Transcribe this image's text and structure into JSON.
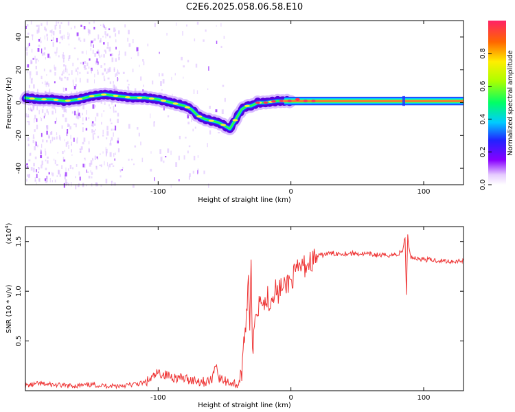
{
  "title": "C2E6.2025.058.06.58.E10",
  "spectrogram": {
    "xlabel": "Height of straight line (km)",
    "ylabel": "Frequency (Hz)",
    "xlim": [
      -200,
      130
    ],
    "ylim": [
      -50,
      50
    ],
    "xticks": [
      -100,
      0,
      100
    ],
    "yticks": [
      40,
      20,
      0,
      -20,
      -40
    ],
    "track": [
      [
        -200,
        3
      ],
      [
        -190,
        2
      ],
      [
        -180,
        2
      ],
      [
        -170,
        1
      ],
      [
        -160,
        2
      ],
      [
        -150,
        4
      ],
      [
        -140,
        5
      ],
      [
        -130,
        4
      ],
      [
        -120,
        3
      ],
      [
        -110,
        3
      ],
      [
        -100,
        2
      ],
      [
        -90,
        0
      ],
      [
        -80,
        -2
      ],
      [
        -75,
        -4
      ],
      [
        -70,
        -8
      ],
      [
        -65,
        -10
      ],
      [
        -60,
        -11
      ],
      [
        -55,
        -12
      ],
      [
        -50,
        -14
      ],
      [
        -46,
        -16
      ],
      [
        -43,
        -12
      ],
      [
        -40,
        -8
      ],
      [
        -37,
        -4
      ],
      [
        -33,
        -2
      ],
      [
        -30,
        -2
      ],
      [
        -25,
        0
      ],
      [
        -20,
        0
      ],
      [
        -10,
        1
      ],
      [
        0,
        1
      ],
      [
        5,
        2
      ],
      [
        10,
        1
      ],
      [
        20,
        1
      ],
      [
        30,
        1
      ],
      [
        50,
        1
      ],
      [
        80,
        1
      ],
      [
        100,
        1
      ],
      [
        130,
        1
      ]
    ]
  },
  "colorbar": {
    "label": "Normalized spectral amplitude",
    "ticks": [
      "0.0",
      "0.2",
      "0.4",
      "0.6",
      "0.8"
    ],
    "tick_values": [
      0.0,
      0.2,
      0.4,
      0.6,
      0.8
    ]
  },
  "chart_data": {
    "type": "line",
    "title": "C2E6.2025.058.06.58.E10",
    "xlabel": "Height of straight line (km)",
    "ylabel": "SNR (10 * v/v)",
    "y_multiplier": "(x10^4)",
    "y_multiplier_base": "(x10",
    "y_multiplier_exp": "4",
    "xlim": [
      -200,
      130
    ],
    "ylim": [
      0,
      1.65
    ],
    "xticks": [
      -100,
      0,
      100
    ],
    "yticks": [
      0.5,
      1.0,
      1.5
    ],
    "ytick_labels": [
      "0.5",
      "1.0",
      "1.5"
    ],
    "x": [
      -200,
      -190,
      -180,
      -170,
      -160,
      -150,
      -140,
      -130,
      -120,
      -110,
      -105,
      -100,
      -95,
      -90,
      -85,
      -80,
      -75,
      -70,
      -65,
      -60,
      -56,
      -55,
      -54,
      -50,
      -45,
      -40,
      -38,
      -36,
      -35,
      -34,
      -33,
      -32,
      -31,
      -30,
      -29,
      -28,
      -27,
      -26,
      -25,
      -24,
      -22,
      -20,
      -18,
      -16,
      -14,
      -12,
      -10,
      -8,
      -6,
      -4,
      -2,
      0,
      2,
      5,
      8,
      10,
      15,
      20,
      25,
      30,
      40,
      50,
      60,
      70,
      80,
      84,
      86,
      87,
      88,
      89,
      90,
      95,
      100,
      110,
      120,
      130
    ],
    "y": [
      0.05,
      0.07,
      0.06,
      0.05,
      0.05,
      0.06,
      0.05,
      0.05,
      0.06,
      0.08,
      0.12,
      0.18,
      0.16,
      0.14,
      0.13,
      0.12,
      0.11,
      0.1,
      0.09,
      0.1,
      0.3,
      0.15,
      0.12,
      0.1,
      0.08,
      0.06,
      0.12,
      0.3,
      0.55,
      0.7,
      0.9,
      1.15,
      0.7,
      1.4,
      0.35,
      0.5,
      0.7,
      0.85,
      0.8,
      0.9,
      1.0,
      0.85,
      0.95,
      0.9,
      0.95,
      1.05,
      0.95,
      1.05,
      1.0,
      1.05,
      1.1,
      1.1,
      1.15,
      1.2,
      1.25,
      1.25,
      1.3,
      1.35,
      1.37,
      1.38,
      1.38,
      1.38,
      1.37,
      1.36,
      1.37,
      1.4,
      1.55,
      0.95,
      1.55,
      1.45,
      1.35,
      1.33,
      1.32,
      1.31,
      1.3,
      1.31
    ],
    "series": [
      {
        "color": "#ee3333"
      }
    ]
  }
}
